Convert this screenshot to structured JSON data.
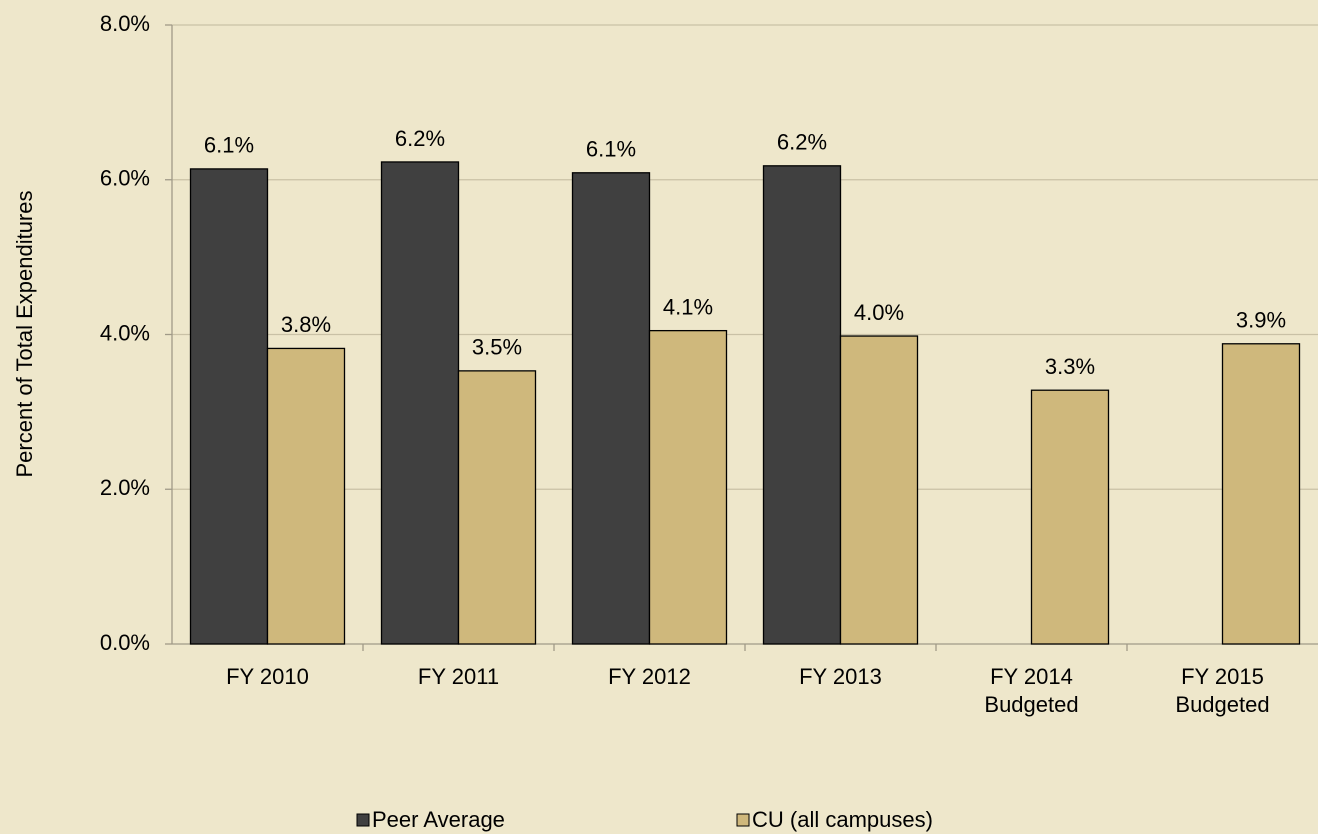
{
  "chart_data": {
    "type": "bar",
    "ylabel": "Percent of Total Expenditures",
    "categories": [
      "FY 2010",
      "FY 2011",
      "FY 2012",
      "FY 2013",
      "FY 2014 Budgeted",
      "FY 2015 Budgeted"
    ],
    "series": [
      {
        "name": "Peer Average",
        "color": "#404040",
        "values": [
          6.14,
          6.23,
          6.09,
          6.18,
          null,
          null
        ],
        "value_labels": [
          "6.1%",
          "6.2%",
          "6.1%",
          "6.2%",
          null,
          null
        ]
      },
      {
        "name": "CU (all campuses)",
        "color": "#CFB87C",
        "values": [
          3.82,
          3.53,
          4.05,
          3.98,
          3.28,
          3.88
        ],
        "value_labels": [
          "3.8%",
          "3.5%",
          "4.1%",
          "4.0%",
          "3.3%",
          "3.9%"
        ]
      }
    ],
    "ylim": [
      0,
      8
    ],
    "yticks": [
      {
        "value": 0,
        "label": "0.0%"
      },
      {
        "value": 2,
        "label": "2.0%"
      },
      {
        "value": 4,
        "label": "4.0%"
      },
      {
        "value": 6,
        "label": "6.0%"
      },
      {
        "value": 8,
        "label": "8.0%"
      }
    ],
    "grid": true,
    "legend": "bottom"
  }
}
